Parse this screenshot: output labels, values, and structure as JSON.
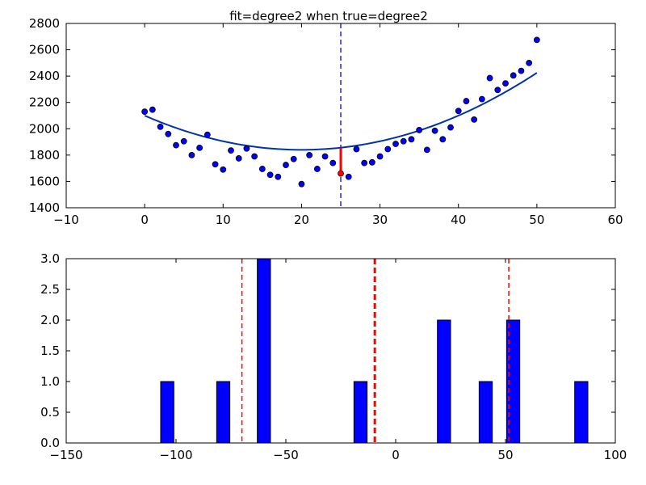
{
  "chart_data": [
    {
      "type": "scatter",
      "title": "fit=degree2 when true=degree2",
      "xlim": [
        -10,
        60
      ],
      "ylim": [
        1400,
        2800
      ],
      "xticks": [
        -10,
        0,
        10,
        20,
        30,
        40,
        50,
        60
      ],
      "yticks": [
        1400,
        1600,
        1800,
        2000,
        2200,
        2400,
        2600,
        2800
      ],
      "grid": false,
      "colors": {
        "points": "#0000ff",
        "fit_line": "#0033aa",
        "vline": "#0000ff",
        "highlight": "#ff0000"
      },
      "points": [
        [
          0,
          2130
        ],
        [
          1,
          2145
        ],
        [
          2,
          2015
        ],
        [
          3,
          1960
        ],
        [
          4,
          1875
        ],
        [
          5,
          1905
        ],
        [
          6,
          1800
        ],
        [
          7,
          1855
        ],
        [
          8,
          1955
        ],
        [
          9,
          1730
        ],
        [
          10,
          1690
        ],
        [
          11,
          1835
        ],
        [
          12,
          1775
        ],
        [
          13,
          1850
        ],
        [
          14,
          1790
        ],
        [
          15,
          1695
        ],
        [
          16,
          1650
        ],
        [
          17,
          1635
        ],
        [
          18,
          1725
        ],
        [
          19,
          1770
        ],
        [
          20,
          1580
        ],
        [
          21,
          1800
        ],
        [
          22,
          1695
        ],
        [
          23,
          1790
        ],
        [
          24,
          1740
        ],
        [
          25,
          1660
        ],
        [
          26,
          1635
        ],
        [
          27,
          1845
        ],
        [
          28,
          1740
        ],
        [
          29,
          1745
        ],
        [
          30,
          1790
        ],
        [
          31,
          1845
        ],
        [
          32,
          1885
        ],
        [
          33,
          1905
        ],
        [
          34,
          1920
        ],
        [
          35,
          1990
        ],
        [
          36,
          1840
        ],
        [
          37,
          1985
        ],
        [
          38,
          1920
        ],
        [
          39,
          2010
        ],
        [
          40,
          2135
        ],
        [
          41,
          2210
        ],
        [
          42,
          2070
        ],
        [
          43,
          2225
        ],
        [
          44,
          2385
        ],
        [
          45,
          2295
        ],
        [
          46,
          2345
        ],
        [
          47,
          2405
        ],
        [
          48,
          2440
        ],
        [
          49,
          2500
        ],
        [
          50,
          2675
        ]
      ],
      "fit": {
        "degree": 2,
        "coefficients": [
          0.65,
          -26,
          2100
        ],
        "x_range": [
          0,
          50
        ]
      },
      "vline_x": 25,
      "highlight_index": 25
    },
    {
      "type": "bar",
      "subtype": "histogram",
      "xlim": [
        -150,
        100
      ],
      "ylim": [
        0,
        3
      ],
      "xticks": [
        -150,
        -100,
        -50,
        0,
        50,
        100
      ],
      "xtick_labels": [
        "−150",
        "−100",
        "−50",
        "0",
        "50",
        "100"
      ],
      "yticks": [
        0.0,
        0.5,
        1.0,
        1.5,
        2.0,
        2.5,
        3.0
      ],
      "ytick_labels": [
        "0.0",
        "0.5",
        "1.0",
        "1.5",
        "2.0",
        "2.5",
        "3.0"
      ],
      "grid": false,
      "colors": {
        "bars": "#0000ff",
        "vlines": "#ff0000"
      },
      "bins": [
        {
          "left": -107,
          "right": -101,
          "count": 1
        },
        {
          "left": -81.5,
          "right": -75.5,
          "count": 1
        },
        {
          "left": -63,
          "right": -57,
          "count": 3
        },
        {
          "left": -19,
          "right": -13,
          "count": 1
        },
        {
          "left": 19,
          "right": 25,
          "count": 2
        },
        {
          "left": 38,
          "right": 44,
          "count": 1
        },
        {
          "left": 50.5,
          "right": 56.5,
          "count": 2
        },
        {
          "left": 81.5,
          "right": 87.5,
          "count": 1
        }
      ],
      "vlines": [
        {
          "x": -70,
          "style": "thin"
        },
        {
          "x": -9.5,
          "style": "thick"
        },
        {
          "x": 51.5,
          "style": "thin"
        }
      ]
    }
  ]
}
